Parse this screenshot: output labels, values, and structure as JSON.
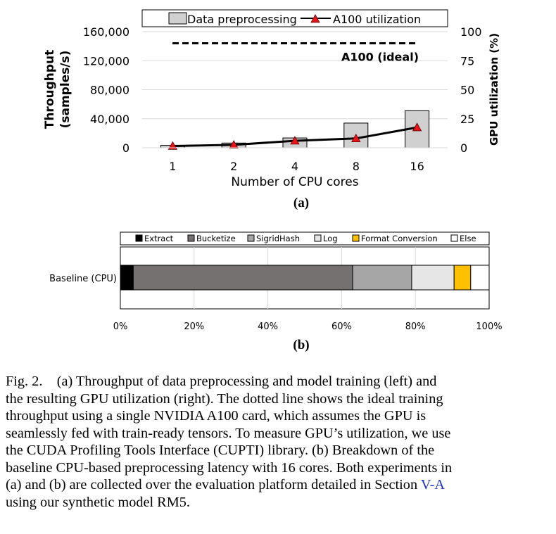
{
  "chart_data": [
    {
      "type": "bar+line",
      "panel_label": "(a)",
      "categories": [
        "1",
        "2",
        "4",
        "8",
        "16"
      ],
      "xlabel": "Number of CPU cores",
      "ylabel_left_lines": [
        "Throughput",
        "(samples/s)"
      ],
      "ylabel_right": "GPU utilization (%)",
      "ylim_left": [
        0,
        160000
      ],
      "ylim_right": [
        0,
        100
      ],
      "yticks_left": [
        "0",
        "40,000",
        "80,000",
        "120,000",
        "160,000"
      ],
      "yticks_right": [
        "0",
        "25",
        "50",
        "75",
        "100"
      ],
      "yticks_left_values": [
        0,
        40000,
        80000,
        120000,
        160000
      ],
      "yticks_right_values": [
        0,
        25,
        50,
        75,
        100
      ],
      "series": [
        {
          "name": "Data preprocessing",
          "kind": "bar",
          "axis": "left",
          "values": [
            3300,
            6500,
            13500,
            34000,
            51000
          ],
          "color": "#d0d0d0"
        },
        {
          "name": "A100 utilization",
          "kind": "line",
          "axis": "right",
          "values": [
            1.5,
            2.5,
            6,
            8,
            17.5
          ],
          "color": "#000000",
          "marker_color": "#e8141a"
        }
      ],
      "reference_line": {
        "label": "A100 (ideal)",
        "axis": "right",
        "value": 90
      },
      "legend_position": "top"
    },
    {
      "type": "bar",
      "orientation": "horizontal",
      "stacked": true,
      "panel_label": "(b)",
      "categories": [
        "Baseline (CPU)"
      ],
      "xlim": [
        0,
        100
      ],
      "xticks": [
        "0%",
        "20%",
        "40%",
        "60%",
        "80%",
        "100%"
      ],
      "xticks_values": [
        0,
        20,
        40,
        60,
        80,
        100
      ],
      "series": [
        {
          "name": "Extract",
          "values": [
            3.5
          ],
          "color": "#000000"
        },
        {
          "name": "Bucketize",
          "values": [
            59.5
          ],
          "color": "#767171"
        },
        {
          "name": "SigridHash",
          "values": [
            16
          ],
          "color": "#a6a6a6"
        },
        {
          "name": "Log",
          "values": [
            11.5
          ],
          "color": "#e7e6e6"
        },
        {
          "name": "Format Conversion",
          "values": [
            4.5
          ],
          "color": "#ffc000"
        },
        {
          "name": "Else",
          "values": [
            5
          ],
          "color": "#ffffff"
        }
      ],
      "legend_position": "top"
    }
  ],
  "caption": {
    "lines": [
      "Fig. 2. (a) Throughput of data preprocessing and model training (left) and",
      "the resulting GPU utilization (right). The dotted line shows the ideal training",
      "throughput using a single NVIDIA A100 card, which assumes the GPU is",
      "seamlessly fed with train-ready tensors. To measure GPU’s utilization, we use",
      "the CUDA Profiling Tools Interface (CUPTI) library. (b) Breakdown of the",
      "baseline CPU-based preprocessing latency with 16 cores. Both experiments in",
      "(a) and (b) are collected over the evaluation platform detailed in Section"
    ],
    "link_text": "V-A",
    "last_line": "using our synthetic model RM5."
  }
}
